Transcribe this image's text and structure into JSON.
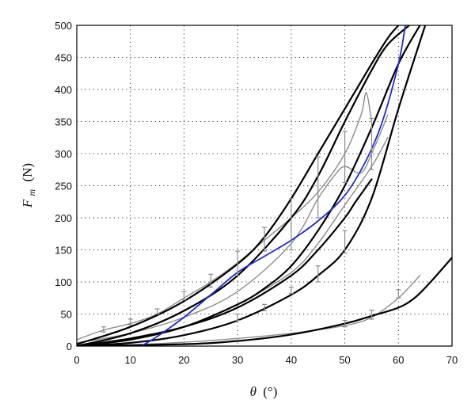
{
  "chart_data": {
    "type": "line",
    "title": "",
    "xlabel": {
      "symbol": "θ",
      "unit": "(°)"
    },
    "ylabel": {
      "symbol": "F",
      "sub": "m",
      "unit": "(N)"
    },
    "xlim": [
      0,
      70
    ],
    "ylim": [
      0,
      500
    ],
    "xticks": [
      0,
      10,
      20,
      30,
      40,
      50,
      60,
      70
    ],
    "yticks": [
      0,
      50,
      100,
      150,
      200,
      250,
      300,
      350,
      400,
      450,
      500
    ],
    "grid": "dotted",
    "legend": "none",
    "colors": {
      "model": "#000000",
      "measured": "#8c8c8c",
      "mean": "#1f2ccc"
    },
    "series": [
      {
        "kind": "model",
        "x": [
          0,
          10,
          20,
          30,
          35,
          40,
          45,
          50,
          55,
          58,
          60
        ],
        "y": [
          3,
          30,
          70,
          128,
          170,
          230,
          300,
          370,
          440,
          480,
          500
        ]
      },
      {
        "kind": "model",
        "x": [
          0,
          10,
          20,
          30,
          40,
          45,
          50,
          55,
          58,
          62
        ],
        "y": [
          0,
          20,
          55,
          110,
          200,
          265,
          350,
          430,
          470,
          500
        ]
      },
      {
        "kind": "model",
        "x": [
          0,
          10,
          20,
          30,
          35,
          40,
          45,
          50,
          55,
          60,
          64
        ],
        "y": [
          0,
          10,
          30,
          65,
          90,
          125,
          180,
          250,
          340,
          440,
          500
        ]
      },
      {
        "kind": "model",
        "x": [
          0,
          10,
          20,
          30,
          40,
          45,
          50,
          55,
          60,
          65
        ],
        "y": [
          0,
          5,
          17,
          40,
          80,
          110,
          150,
          230,
          370,
          500
        ]
      },
      {
        "kind": "model",
        "x": [
          0,
          20,
          30,
          40,
          50,
          55,
          60,
          63,
          66,
          70
        ],
        "y": [
          0,
          3,
          8,
          18,
          35,
          47,
          60,
          75,
          100,
          138
        ]
      },
      {
        "kind": "measured",
        "x": [
          0,
          5,
          10,
          15,
          20,
          25,
          30,
          35,
          40,
          45,
          50,
          53,
          54,
          55
        ],
        "y": [
          10,
          25,
          35,
          50,
          75,
          100,
          130,
          165,
          200,
          240,
          300,
          360,
          395,
          350
        ]
      },
      {
        "kind": "measured",
        "x": [
          0,
          10,
          20,
          30,
          40,
          45,
          48,
          50,
          53,
          55,
          58
        ],
        "y": [
          5,
          20,
          45,
          85,
          160,
          230,
          265,
          280,
          270,
          300,
          360
        ]
      },
      {
        "kind": "measured",
        "x": [
          0,
          10,
          20,
          30,
          40,
          45,
          50,
          55,
          58
        ],
        "y": [
          2,
          12,
          30,
          65,
          115,
          160,
          220,
          280,
          325
        ]
      },
      {
        "kind": "measured",
        "x": [
          0,
          10,
          20,
          30,
          40,
          50,
          55,
          60,
          64
        ],
        "y": [
          0,
          2,
          6,
          12,
          20,
          32,
          45,
          75,
          110
        ]
      },
      {
        "kind": "mean",
        "x": [
          12,
          15,
          20,
          25,
          30,
          35,
          40,
          45,
          50,
          54,
          57,
          60,
          61.3
        ],
        "y": [
          0,
          15,
          45,
          80,
          115,
          140,
          165,
          195,
          235,
          290,
          350,
          440,
          500
        ]
      },
      {
        "kind": "model",
        "x": [
          0,
          10,
          20,
          30,
          40,
          45,
          50,
          52,
          55
        ],
        "y": [
          0,
          12,
          30,
          60,
          110,
          150,
          200,
          225,
          260
        ]
      }
    ],
    "error_bars": [
      {
        "x": 5,
        "low": 22,
        "high": 30
      },
      {
        "x": 10,
        "low": 33,
        "high": 42
      },
      {
        "x": 15,
        "low": 50,
        "high": 58
      },
      {
        "x": 20,
        "low": 72,
        "high": 85
      },
      {
        "x": 25,
        "low": 92,
        "high": 112
      },
      {
        "x": 30,
        "low": 110,
        "high": 148
      },
      {
        "x": 35,
        "low": 148,
        "high": 185
      },
      {
        "x": 40,
        "low": 150,
        "high": 230
      },
      {
        "x": 45,
        "low": 200,
        "high": 295
      },
      {
        "x": 50,
        "low": 255,
        "high": 335
      },
      {
        "x": 55,
        "low": 275,
        "high": 355
      },
      {
        "x": 45,
        "low": 100,
        "high": 125
      },
      {
        "x": 50,
        "low": 145,
        "high": 180
      },
      {
        "x": 35,
        "low": 55,
        "high": 65
      },
      {
        "x": 40,
        "low": 82,
        "high": 92
      },
      {
        "x": 30,
        "low": 40,
        "high": 50
      },
      {
        "x": 50,
        "low": 30,
        "high": 40
      },
      {
        "x": 55,
        "low": 42,
        "high": 56
      },
      {
        "x": 60,
        "low": 75,
        "high": 88
      }
    ]
  }
}
